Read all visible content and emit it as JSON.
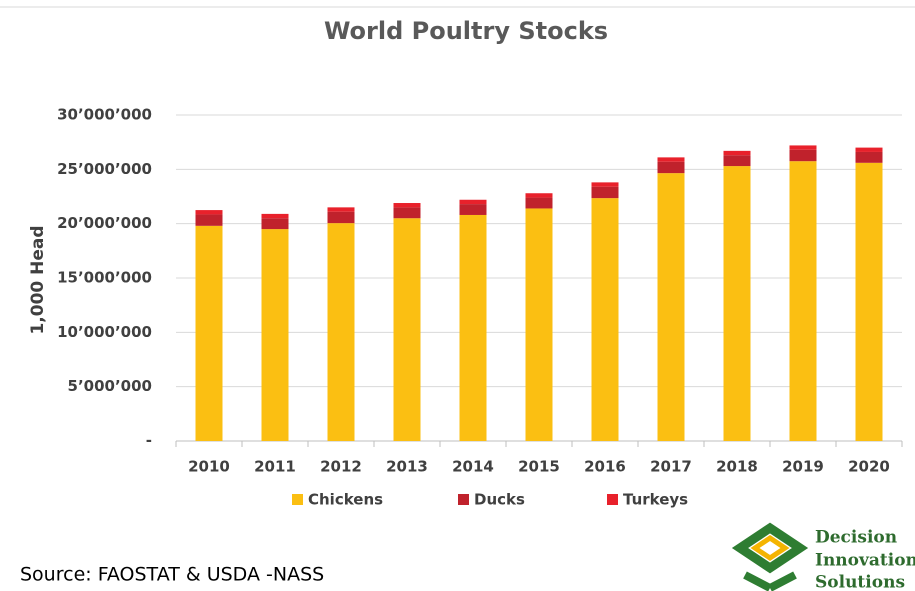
{
  "chart_data": {
    "type": "stacked_bar",
    "title": "World Poultry Stocks",
    "y_label": "1,000 Head",
    "categories": [
      "2010",
      "2011",
      "2012",
      "2013",
      "2014",
      "2015",
      "2016",
      "2017",
      "2018",
      "2019",
      "2020"
    ],
    "series": [
      {
        "name": "Chickens",
        "color": "#FBBF12",
        "values": [
          19800000,
          19500000,
          20050000,
          20500000,
          20800000,
          21400000,
          22350000,
          24650000,
          25300000,
          25750000,
          25600000
        ]
      },
      {
        "name": "Ducks",
        "color": "#C0222C",
        "values": [
          1050000,
          1000000,
          1050000,
          1000000,
          1000000,
          1000000,
          1050000,
          1050000,
          1000000,
          1050000,
          1000000
        ]
      },
      {
        "name": "Turkeys",
        "color": "#E8212B",
        "values": [
          400000,
          400000,
          400000,
          400000,
          400000,
          400000,
          400000,
          400000,
          400000,
          400000,
          400000
        ]
      }
    ],
    "ylim": [
      0,
      30000000
    ],
    "yticks": [
      {
        "value": 0,
        "label": "-"
      },
      {
        "value": 5000000,
        "label": "5’000’000"
      },
      {
        "value": 10000000,
        "label": "10’000’000"
      },
      {
        "value": 15000000,
        "label": "15’000’000"
      },
      {
        "value": 20000000,
        "label": "20’000’000"
      },
      {
        "value": 25000000,
        "label": "25’000’000"
      },
      {
        "value": 30000000,
        "label": "30’000’000"
      }
    ],
    "grid": true,
    "legend": "bottom"
  },
  "source": "Source: FAOSTAT & USDA -NASS",
  "logo": {
    "lines": [
      "Decision",
      "Innovation",
      "Solutions"
    ]
  }
}
